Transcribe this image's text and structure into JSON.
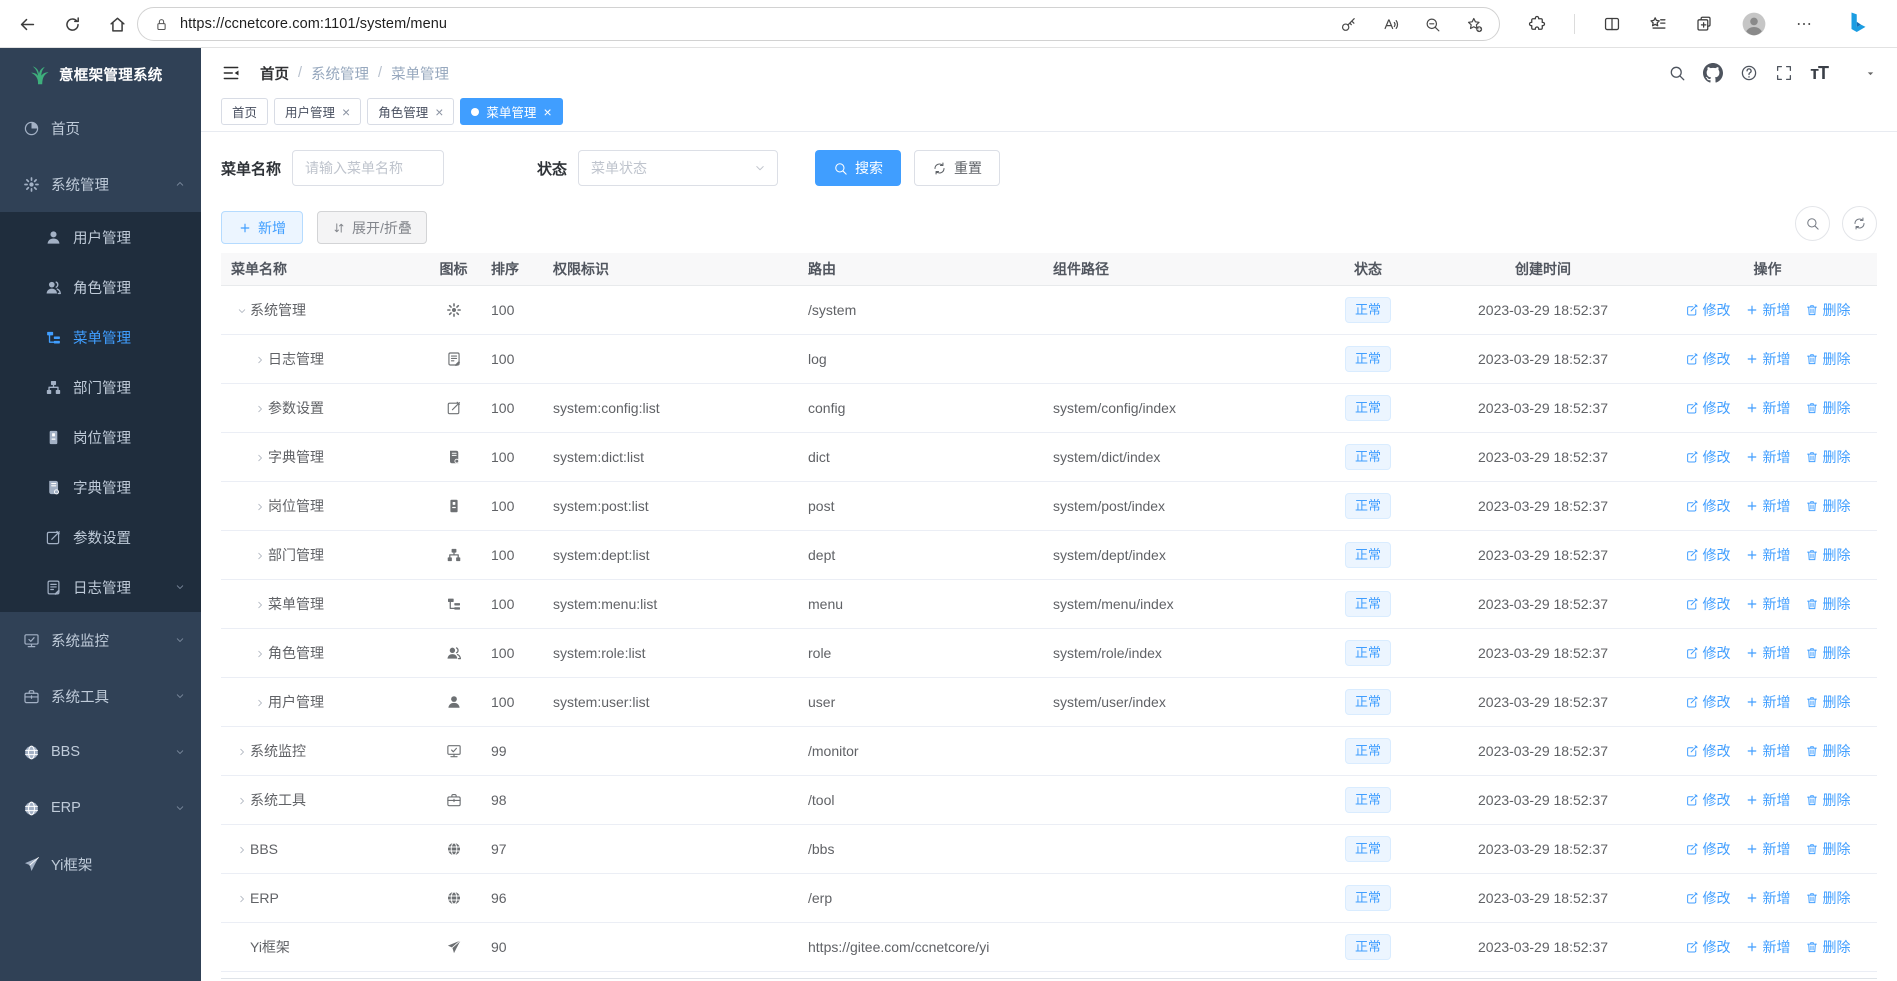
{
  "browser": {
    "url": "https://ccnetcore.com:1101/system/menu"
  },
  "app": {
    "logo_title": "意框架管理系统",
    "breadcrumb": [
      "首页",
      "系统管理",
      "菜单管理"
    ]
  },
  "sidebar": {
    "items": [
      {
        "id": "home",
        "label": "首页",
        "icon": "dashboard"
      },
      {
        "id": "system",
        "label": "系统管理",
        "icon": "gear",
        "caret": "up",
        "children": [
          {
            "id": "user",
            "label": "用户管理",
            "icon": "user"
          },
          {
            "id": "role",
            "label": "角色管理",
            "icon": "users"
          },
          {
            "id": "menu",
            "label": "菜单管理",
            "icon": "menu",
            "active": true
          },
          {
            "id": "dept",
            "label": "部门管理",
            "icon": "dept"
          },
          {
            "id": "post",
            "label": "岗位管理",
            "icon": "post"
          },
          {
            "id": "dict",
            "label": "字典管理",
            "icon": "dict"
          },
          {
            "id": "config",
            "label": "参数设置",
            "icon": "edit"
          },
          {
            "id": "log",
            "label": "日志管理",
            "icon": "log",
            "caret": "down"
          }
        ]
      },
      {
        "id": "monitor",
        "label": "系统监控",
        "icon": "monitor",
        "caret": "down"
      },
      {
        "id": "tool",
        "label": "系统工具",
        "icon": "tool",
        "caret": "down"
      },
      {
        "id": "bbs",
        "label": "BBS",
        "icon": "globe",
        "caret": "down"
      },
      {
        "id": "erp",
        "label": "ERP",
        "icon": "globe",
        "caret": "down"
      },
      {
        "id": "yi",
        "label": "Yi框架",
        "icon": "send"
      }
    ]
  },
  "tabs": [
    {
      "label": "首页",
      "closable": false,
      "active": false
    },
    {
      "label": "用户管理",
      "closable": true,
      "active": false
    },
    {
      "label": "角色管理",
      "closable": true,
      "active": false
    },
    {
      "label": "菜单管理",
      "closable": true,
      "active": true
    }
  ],
  "filters": {
    "name_label": "菜单名称",
    "name_placeholder": "请输入菜单名称",
    "status_label": "状态",
    "status_placeholder": "菜单状态",
    "search_label": "搜索",
    "reset_label": "重置"
  },
  "toolbar": {
    "add_label": "新增",
    "toggle_label": "展开/折叠"
  },
  "table": {
    "columns": [
      "菜单名称",
      "图标",
      "排序",
      "权限标识",
      "路由",
      "组件路径",
      "状态",
      "创建时间",
      "操作"
    ],
    "actions": [
      {
        "key": "edit",
        "label": "修改",
        "icon": "edit-square"
      },
      {
        "key": "add",
        "label": "新增",
        "icon": "plus"
      },
      {
        "key": "delete",
        "label": "删除",
        "icon": "trash"
      }
    ],
    "rows": [
      {
        "name": "系统管理",
        "icon": "gear",
        "level": 0,
        "expand": "open",
        "sort": "100",
        "perms": "",
        "path": "/system",
        "component": "",
        "status": "正常",
        "created": "2023-03-29 18:52:37"
      },
      {
        "name": "日志管理",
        "icon": "log",
        "level": 1,
        "expand": "closed",
        "sort": "100",
        "perms": "",
        "path": "log",
        "component": "",
        "status": "正常",
        "created": "2023-03-29 18:52:37"
      },
      {
        "name": "参数设置",
        "icon": "edit",
        "level": 1,
        "expand": "closed",
        "sort": "100",
        "perms": "system:config:list",
        "path": "config",
        "component": "system/config/index",
        "status": "正常",
        "created": "2023-03-29 18:52:37"
      },
      {
        "name": "字典管理",
        "icon": "dict",
        "level": 1,
        "expand": "closed",
        "sort": "100",
        "perms": "system:dict:list",
        "path": "dict",
        "component": "system/dict/index",
        "status": "正常",
        "created": "2023-03-29 18:52:37"
      },
      {
        "name": "岗位管理",
        "icon": "post",
        "level": 1,
        "expand": "closed",
        "sort": "100",
        "perms": "system:post:list",
        "path": "post",
        "component": "system/post/index",
        "status": "正常",
        "created": "2023-03-29 18:52:37"
      },
      {
        "name": "部门管理",
        "icon": "dept",
        "level": 1,
        "expand": "closed",
        "sort": "100",
        "perms": "system:dept:list",
        "path": "dept",
        "component": "system/dept/index",
        "status": "正常",
        "created": "2023-03-29 18:52:37"
      },
      {
        "name": "菜单管理",
        "icon": "menu",
        "level": 1,
        "expand": "closed",
        "sort": "100",
        "perms": "system:menu:list",
        "path": "menu",
        "component": "system/menu/index",
        "status": "正常",
        "created": "2023-03-29 18:52:37"
      },
      {
        "name": "角色管理",
        "icon": "users",
        "level": 1,
        "expand": "closed",
        "sort": "100",
        "perms": "system:role:list",
        "path": "role",
        "component": "system/role/index",
        "status": "正常",
        "created": "2023-03-29 18:52:37"
      },
      {
        "name": "用户管理",
        "icon": "user",
        "level": 1,
        "expand": "closed",
        "sort": "100",
        "perms": "system:user:list",
        "path": "user",
        "component": "system/user/index",
        "status": "正常",
        "created": "2023-03-29 18:52:37"
      },
      {
        "name": "系统监控",
        "icon": "monitor",
        "level": 0,
        "expand": "closed",
        "sort": "99",
        "perms": "",
        "path": "/monitor",
        "component": "",
        "status": "正常",
        "created": "2023-03-29 18:52:37"
      },
      {
        "name": "系统工具",
        "icon": "tool",
        "level": 0,
        "expand": "closed",
        "sort": "98",
        "perms": "",
        "path": "/tool",
        "component": "",
        "status": "正常",
        "created": "2023-03-29 18:52:37"
      },
      {
        "name": "BBS",
        "icon": "globe",
        "level": 0,
        "expand": "closed",
        "sort": "97",
        "perms": "",
        "path": "/bbs",
        "component": "",
        "status": "正常",
        "created": "2023-03-29 18:52:37"
      },
      {
        "name": "ERP",
        "icon": "globe",
        "level": 0,
        "expand": "closed",
        "sort": "96",
        "perms": "",
        "path": "/erp",
        "component": "",
        "status": "正常",
        "created": "2023-03-29 18:52:37"
      },
      {
        "name": "Yi框架",
        "icon": "send",
        "level": 0,
        "expand": "none",
        "sort": "90",
        "perms": "",
        "path": "https://gitee.com/ccnetcore/yi",
        "component": "",
        "status": "正常",
        "created": "2023-03-29 18:52:37"
      }
    ]
  },
  "colors": {
    "primary": "#409eff",
    "sidebar_bg": "#304156",
    "sidebar_submenu_bg": "#1f2d3d",
    "tag_bg": "#ecf5ff",
    "tag_border": "#d9ecff"
  }
}
